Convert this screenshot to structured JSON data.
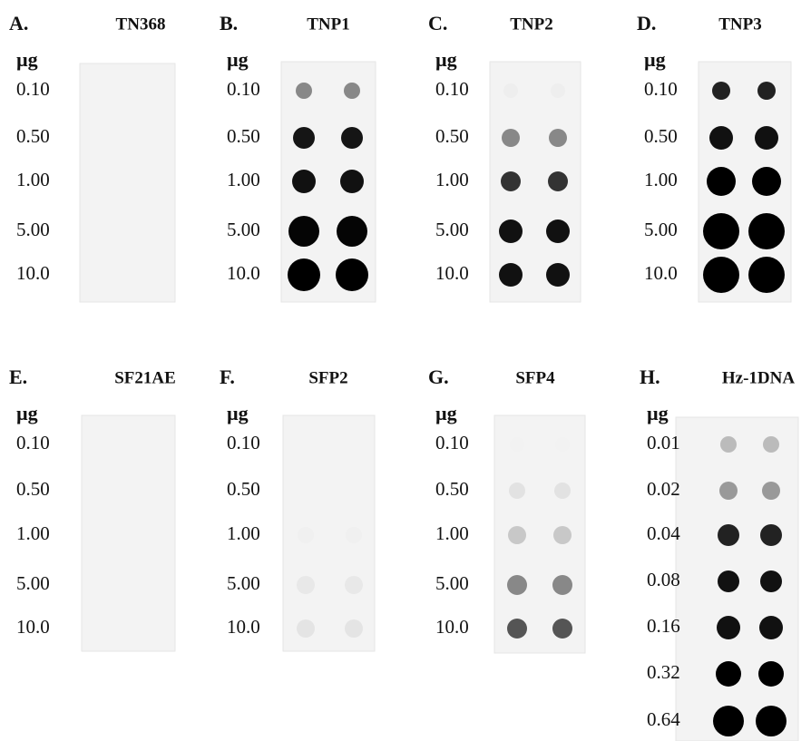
{
  "panels": [
    {
      "letter": "A.",
      "title": "TN368",
      "unit": "µg",
      "rows": [
        "0.10",
        "0.50",
        "1.00",
        "5.00",
        "10.0"
      ]
    },
    {
      "letter": "B.",
      "title": "TNP1",
      "unit": "µg",
      "rows": [
        "0.10",
        "0.50",
        "1.00",
        "5.00",
        "10.0"
      ]
    },
    {
      "letter": "C.",
      "title": "TNP2",
      "unit": "µg",
      "rows": [
        "0.10",
        "0.50",
        "1.00",
        "5.00",
        "10.0"
      ]
    },
    {
      "letter": "D.",
      "title": "TNP3",
      "unit": "µg",
      "rows": [
        "0.10",
        "0.50",
        "1.00",
        "5.00",
        "10.0"
      ]
    },
    {
      "letter": "E.",
      "title": "SF21AE",
      "unit": "µg",
      "rows": [
        "0.10",
        "0.50",
        "1.00",
        "5.00",
        "10.0"
      ]
    },
    {
      "letter": "F.",
      "title": "SFP2",
      "unit": "µg",
      "rows": [
        "0.10",
        "0.50",
        "1.00",
        "5.00",
        "10.0"
      ]
    },
    {
      "letter": "G.",
      "title": "SFP4",
      "unit": "µg",
      "rows": [
        "0.10",
        "0.50",
        "1.00",
        "5.00",
        "10.0"
      ]
    },
    {
      "letter": "H.",
      "title": "Hz-1DNA",
      "unit": "µg",
      "rows": [
        "0.01",
        "0.02",
        "0.04",
        "0.08",
        "0.16",
        "0.32",
        "0.64"
      ]
    }
  ]
}
